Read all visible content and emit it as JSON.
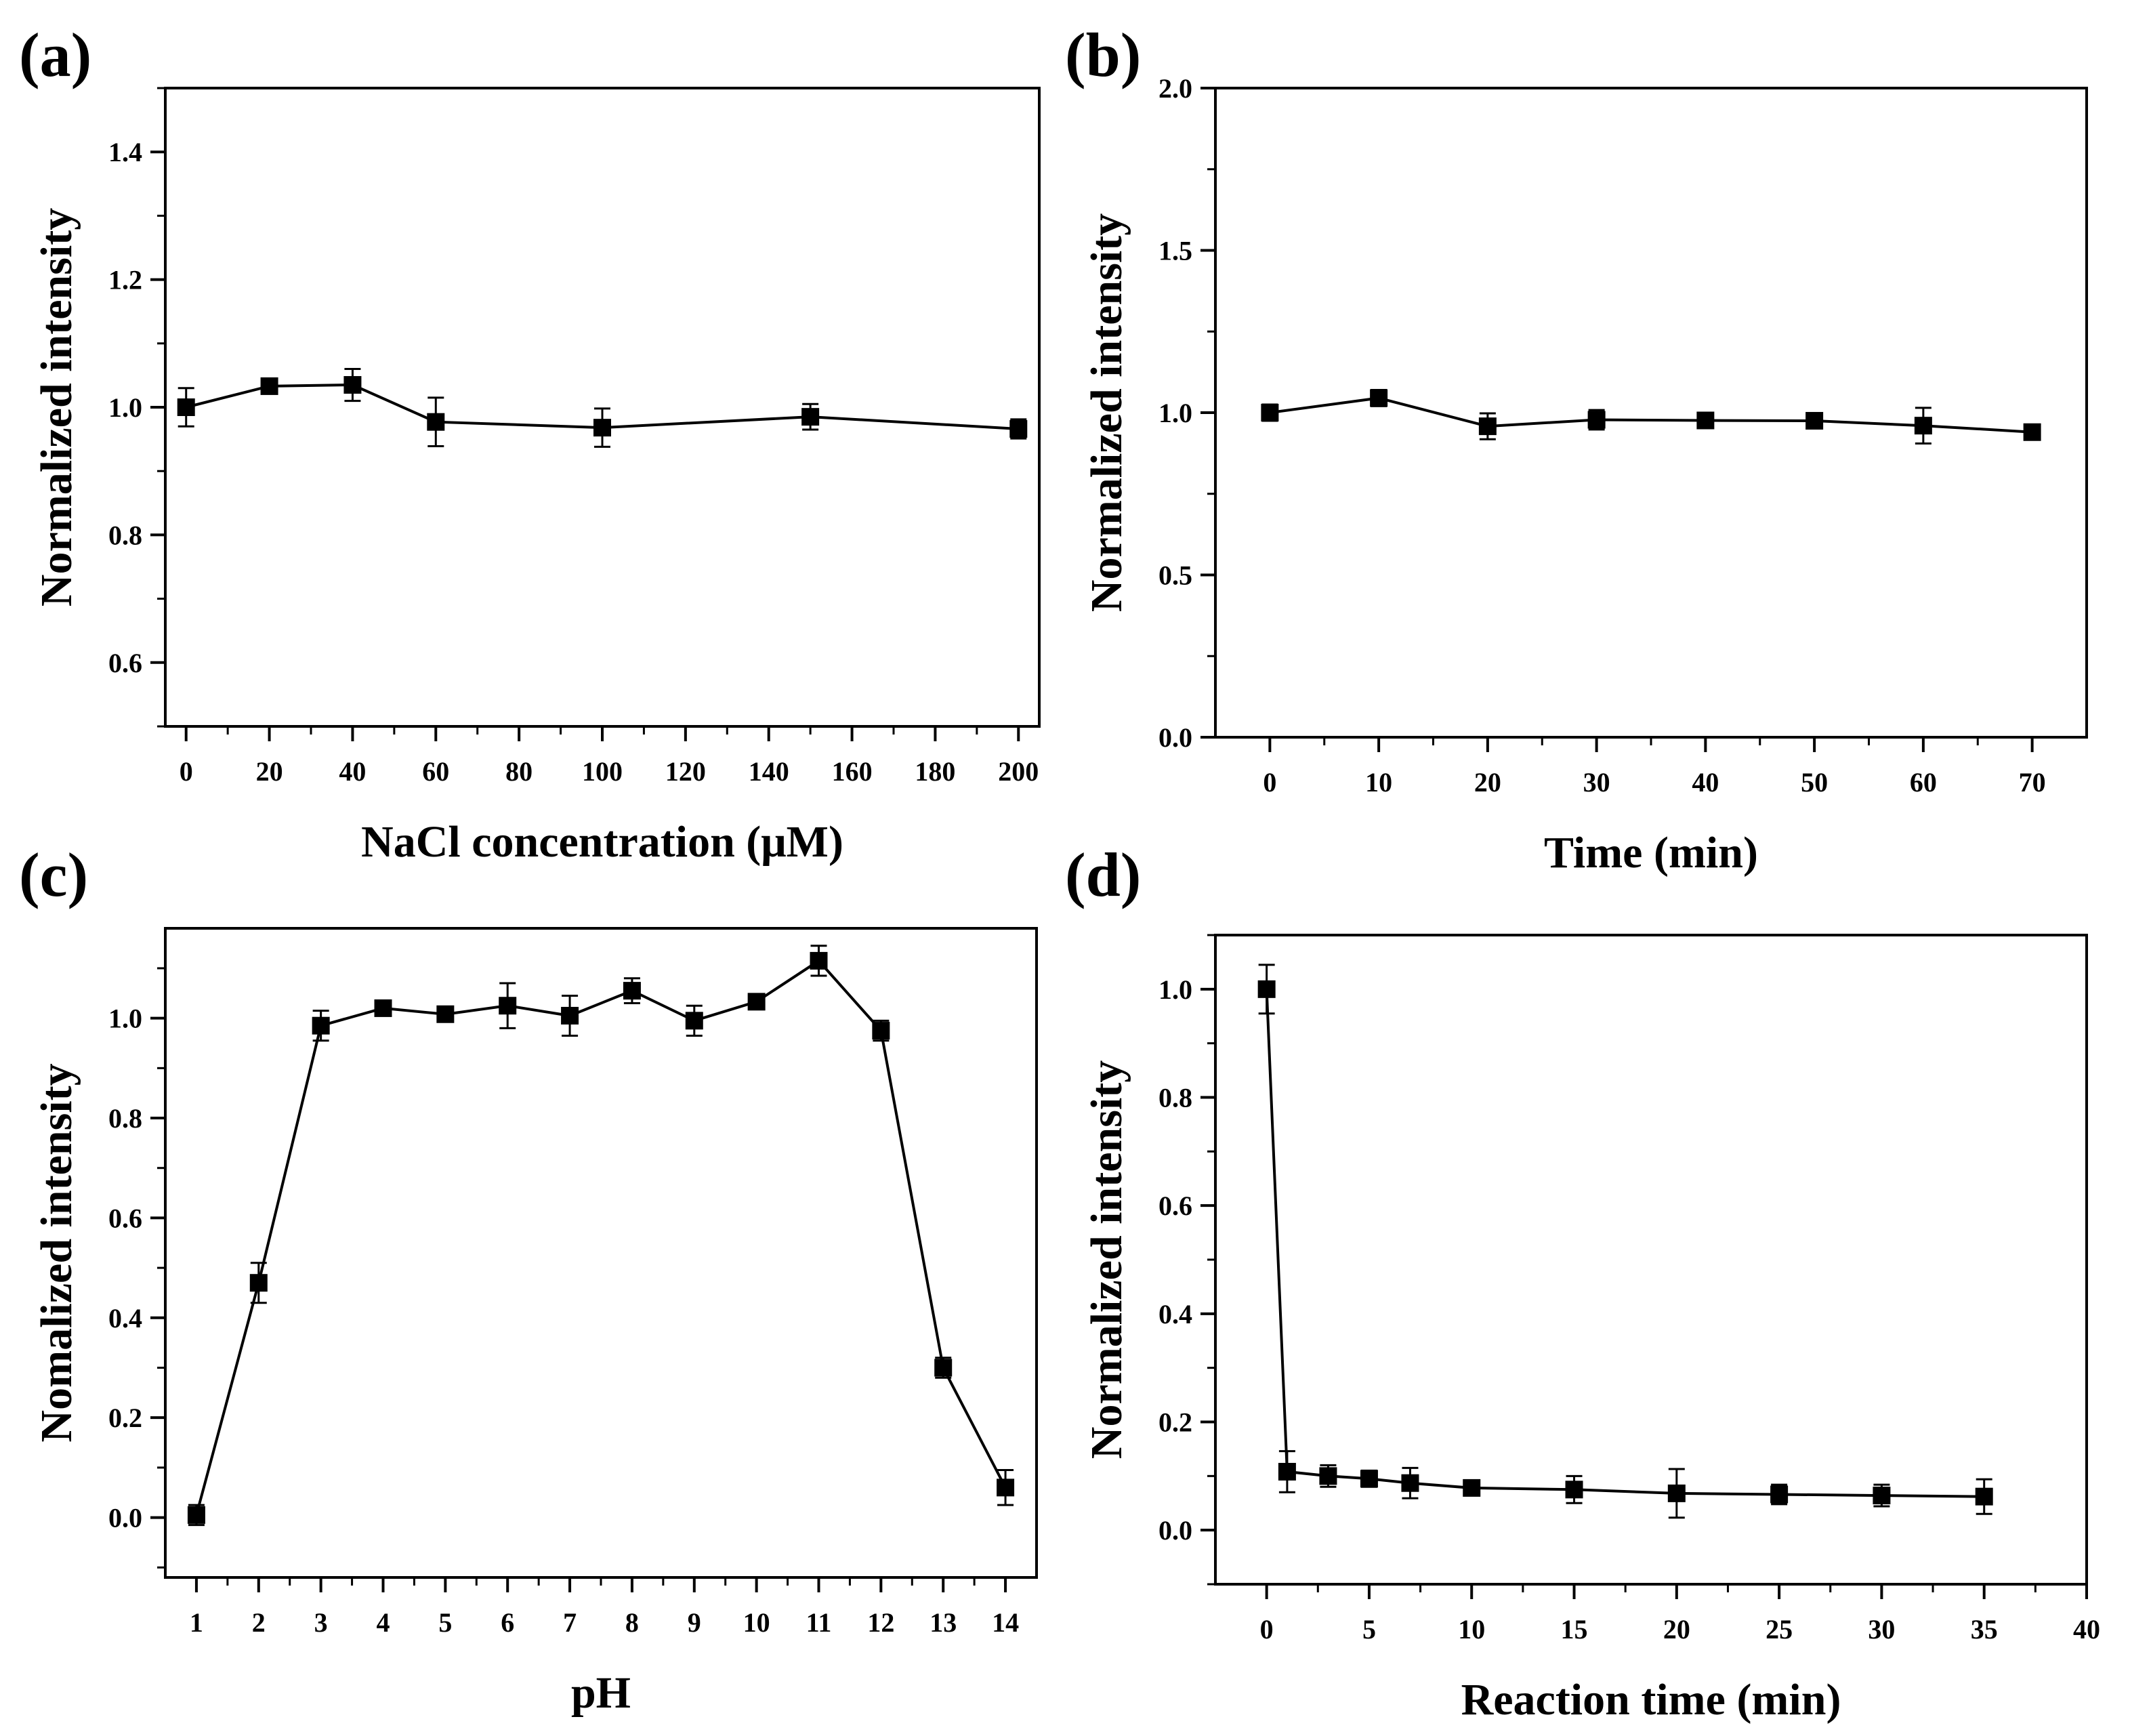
{
  "chart_data": [
    {
      "type": "line",
      "panel": "(a)",
      "xlabel": "NaCl concentration (μM)",
      "ylabel": "Normalized intensity",
      "xlim": [
        -5,
        205
      ],
      "ylim": [
        0.5,
        1.5
      ],
      "xticks": [
        0,
        20,
        40,
        60,
        80,
        100,
        120,
        140,
        160,
        180,
        200
      ],
      "yticks": [
        0.6,
        0.8,
        1.0,
        1.2,
        1.4
      ],
      "ytick_labels": [
        "0.6",
        "0.8",
        "1.0",
        "1.2",
        "1.4"
      ],
      "minor_y_step": 0.1,
      "series": [
        {
          "name": "Normalized intensity",
          "x": [
            0,
            20,
            40,
            60,
            100,
            150,
            200
          ],
          "y": [
            1.0,
            1.033,
            1.035,
            0.977,
            0.968,
            0.985,
            0.966
          ],
          "err": [
            0.03,
            0.008,
            0.025,
            0.038,
            0.03,
            0.02,
            0.015
          ]
        }
      ]
    },
    {
      "type": "line",
      "panel": "(b)",
      "xlabel": "Time (min)",
      "ylabel": "Normalized intensity",
      "xlim": [
        -5,
        75
      ],
      "ylim": [
        0.0,
        2.0
      ],
      "xticks": [
        0,
        10,
        20,
        30,
        40,
        50,
        60,
        70
      ],
      "yticks": [
        0.0,
        0.5,
        1.0,
        1.5,
        2.0
      ],
      "ytick_labels": [
        "0.0",
        "0.5",
        "1.0",
        "1.5",
        "2.0"
      ],
      "minor_y_step": 0.25,
      "series": [
        {
          "name": "Normalized intensity",
          "x": [
            0,
            10,
            20,
            30,
            40,
            50,
            60,
            70
          ],
          "y": [
            1.0,
            1.045,
            0.958,
            0.978,
            0.976,
            0.975,
            0.96,
            0.94
          ],
          "err": [
            0.025,
            0.025,
            0.04,
            0.03,
            0.015,
            0.02,
            0.055,
            0.015
          ]
        }
      ]
    },
    {
      "type": "line",
      "panel": "(c)",
      "xlabel": "pH",
      "ylabel": "Nomalized intensity",
      "xlim": [
        0.5,
        14.5
      ],
      "ylim": [
        -0.12,
        1.18
      ],
      "xticks": [
        1,
        2,
        3,
        4,
        5,
        6,
        7,
        8,
        9,
        10,
        11,
        12,
        13,
        14
      ],
      "yticks": [
        0.0,
        0.2,
        0.4,
        0.6,
        0.8,
        1.0
      ],
      "ytick_labels": [
        "0.0",
        "0.2",
        "0.4",
        "0.6",
        "0.8",
        "1.0"
      ],
      "minor_y_step": 0.1,
      "series": [
        {
          "name": "Normalized intensity",
          "x": [
            1,
            2,
            3,
            4,
            5,
            6,
            7,
            8,
            9,
            10,
            11,
            12,
            13,
            14
          ],
          "y": [
            0.005,
            0.47,
            0.985,
            1.02,
            1.008,
            1.025,
            1.005,
            1.055,
            0.995,
            1.033,
            1.115,
            0.975,
            0.3,
            0.06
          ],
          "err": [
            0.02,
            0.04,
            0.03,
            0.01,
            0.015,
            0.045,
            0.04,
            0.025,
            0.03,
            0.01,
            0.03,
            0.02,
            0.02,
            0.035
          ]
        }
      ]
    },
    {
      "type": "line",
      "panel": "(d)",
      "xlabel": "Reaction time (min)",
      "ylabel": "Normalized intensity",
      "xlim": [
        -2.5,
        40
      ],
      "ylim": [
        -0.1,
        1.1
      ],
      "xticks": [
        0,
        5,
        10,
        15,
        20,
        25,
        30,
        35,
        40
      ],
      "yticks": [
        0.0,
        0.2,
        0.4,
        0.6,
        0.8,
        1.0
      ],
      "ytick_labels": [
        "0.0",
        "0.2",
        "0.4",
        "0.6",
        "0.8",
        "1.0"
      ],
      "minor_y_step": 0.1,
      "series": [
        {
          "name": "Normalized intensity",
          "x": [
            0,
            1,
            3,
            5,
            7,
            10,
            15,
            20,
            25,
            30,
            35
          ],
          "y": [
            1.0,
            0.108,
            0.1,
            0.095,
            0.087,
            0.078,
            0.075,
            0.068,
            0.066,
            0.064,
            0.062
          ],
          "err": [
            0.045,
            0.038,
            0.02,
            0.015,
            0.028,
            0.008,
            0.025,
            0.045,
            0.018,
            0.02,
            0.032
          ]
        }
      ]
    }
  ]
}
